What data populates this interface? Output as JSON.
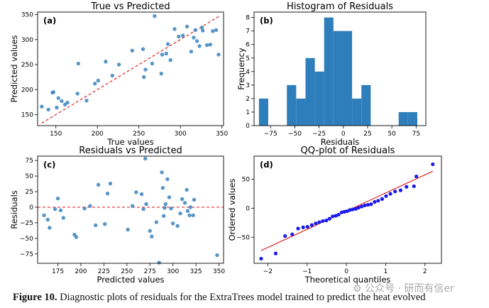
{
  "colors": {
    "point": "#3b84be",
    "bar": "#2f7ebc",
    "ref": "#dd1111",
    "qq": "#1a1aee"
  },
  "caption": {
    "label": "Figure 10.",
    "text": " Diagnostic plots of residuals for the ExtraTrees model trained to predict the heat evolved"
  },
  "watermark": "⚙ 公众号 · 研而有信er",
  "chart_data": [
    {
      "type": "scatter",
      "panel": "(a)",
      "title": "True vs Predicted",
      "xlabel": "True values",
      "ylabel": "Predicted values",
      "xlim": [
        128,
        352
      ],
      "ylim": [
        128,
        355
      ],
      "xticks": [
        150,
        200,
        250,
        300,
        350
      ],
      "yticks": [
        150,
        200,
        250,
        300,
        350
      ],
      "reference_line": {
        "style": "dashed",
        "points": [
          [
            133,
            133
          ],
          [
            347,
            347
          ]
        ]
      },
      "x": [
        133,
        141,
        146,
        147,
        151,
        153,
        157,
        161,
        164,
        176,
        177,
        187,
        197,
        201,
        210,
        218,
        226,
        242,
        255,
        256,
        258,
        266,
        269,
        277,
        278,
        283,
        285,
        288,
        293,
        298,
        303,
        308,
        313,
        316,
        318,
        320,
        323,
        326,
        327,
        332,
        336,
        339,
        343,
        346
      ],
      "y": [
        166,
        160,
        194,
        195,
        164,
        183,
        177,
        170,
        174,
        192,
        252,
        178,
        212,
        218,
        256,
        228,
        250,
        278,
        281,
        225,
        240,
        252,
        347,
        232,
        270,
        272,
        291,
        259,
        321,
        306,
        308,
        326,
        276,
        304,
        319,
        297,
        287,
        324,
        318,
        289,
        290,
        317,
        319,
        270
      ]
    },
    {
      "type": "histogram",
      "panel": "(b)",
      "title": "Histogram of Residuals",
      "xlabel": "Residuals",
      "ylabel": "Frequency",
      "xlim": [
        -92,
        85
      ],
      "ylim": [
        0,
        8.4
      ],
      "xticks": [
        -75,
        -50,
        -25,
        0,
        25,
        50,
        75
      ],
      "yticks": [
        0,
        1,
        2,
        3,
        4,
        5,
        6,
        7,
        8
      ],
      "bin_edges": [
        -87,
        -77.4,
        -67.8,
        -58.2,
        -48.6,
        -39,
        -29.4,
        -19.8,
        -10.2,
        -0.6,
        9,
        18.6,
        28.2,
        37.8,
        47.4,
        57,
        66.6,
        76.2
      ],
      "counts": [
        2,
        0,
        0,
        3,
        2,
        5,
        4,
        8,
        7,
        7,
        2,
        3,
        0,
        0,
        0,
        1,
        1
      ]
    },
    {
      "type": "scatter",
      "panel": "(c)",
      "title": "Residuals vs Predicted",
      "xlabel": "Predicted values",
      "ylabel": "Residuals",
      "xlim": [
        153,
        355
      ],
      "ylim": [
        -90,
        82
      ],
      "xticks": [
        175,
        200,
        225,
        250,
        275,
        300,
        325,
        350
      ],
      "yticks": [
        -75,
        -50,
        -25,
        0,
        25,
        50,
        75
      ],
      "reference_line": {
        "style": "dashed",
        "y": 0
      },
      "x": [
        160,
        164,
        166,
        172,
        175,
        178,
        181,
        193,
        195,
        204,
        210,
        216,
        219,
        226,
        229,
        232,
        251,
        256,
        260,
        266,
        268,
        270,
        271,
        275,
        277,
        282,
        285,
        288,
        289,
        290,
        291,
        292,
        294,
        296,
        298,
        300,
        305,
        308,
        310,
        313,
        315,
        316,
        318,
        319,
        322,
        323,
        348
      ],
      "y": [
        -13,
        -20,
        -33,
        -3,
        14,
        -5,
        -17,
        -44,
        -48,
        -2,
        2,
        -29,
        36,
        -27,
        22,
        38,
        -36,
        2,
        24,
        21,
        -3,
        78,
        5,
        -38,
        -47,
        -24,
        -89,
        56,
        31,
        -14,
        -1,
        5,
        45,
        16,
        -2,
        -26,
        -30,
        -10,
        13,
        7,
        28,
        -6,
        -13,
        0,
        -13,
        12,
        -77
      ]
    },
    {
      "type": "scatter",
      "panel": "(d)",
      "title": "QQ-plot of Residuals",
      "xlabel": "Theoretical quantiles",
      "ylabel": "Ordered values",
      "xlim": [
        -2.35,
        2.42
      ],
      "ylim": [
        -95,
        90
      ],
      "xticks": [
        -2,
        -1,
        0,
        1,
        2
      ],
      "yticks": [
        -50,
        0,
        50
      ],
      "reference_line": {
        "style": "solid",
        "points": [
          [
            -2.17,
            -73
          ],
          [
            2.2,
            64
          ]
        ]
      },
      "x": [
        -2.17,
        -1.8,
        -1.56,
        -1.38,
        -1.23,
        -1.1,
        -0.99,
        -0.88,
        -0.78,
        -0.69,
        -0.6,
        -0.51,
        -0.43,
        -0.35,
        -0.27,
        -0.2,
        -0.12,
        -0.05,
        0.02,
        0.09,
        0.16,
        0.24,
        0.31,
        0.39,
        0.47,
        0.55,
        0.63,
        0.72,
        0.81,
        0.91,
        1.01,
        1.12,
        1.24,
        1.38,
        1.53,
        1.72,
        1.78,
        2.2
      ],
      "y": [
        -87,
        -78,
        -48,
        -45,
        -35,
        -33,
        -32,
        -29,
        -26,
        -24,
        -22,
        -21,
        -18,
        -14,
        -13,
        -11,
        -7,
        -6,
        -5,
        -3,
        -2,
        -1,
        1,
        3,
        5,
        6,
        7,
        11,
        13,
        16,
        21,
        25,
        29,
        31,
        37,
        38,
        55,
        76
      ]
    }
  ]
}
